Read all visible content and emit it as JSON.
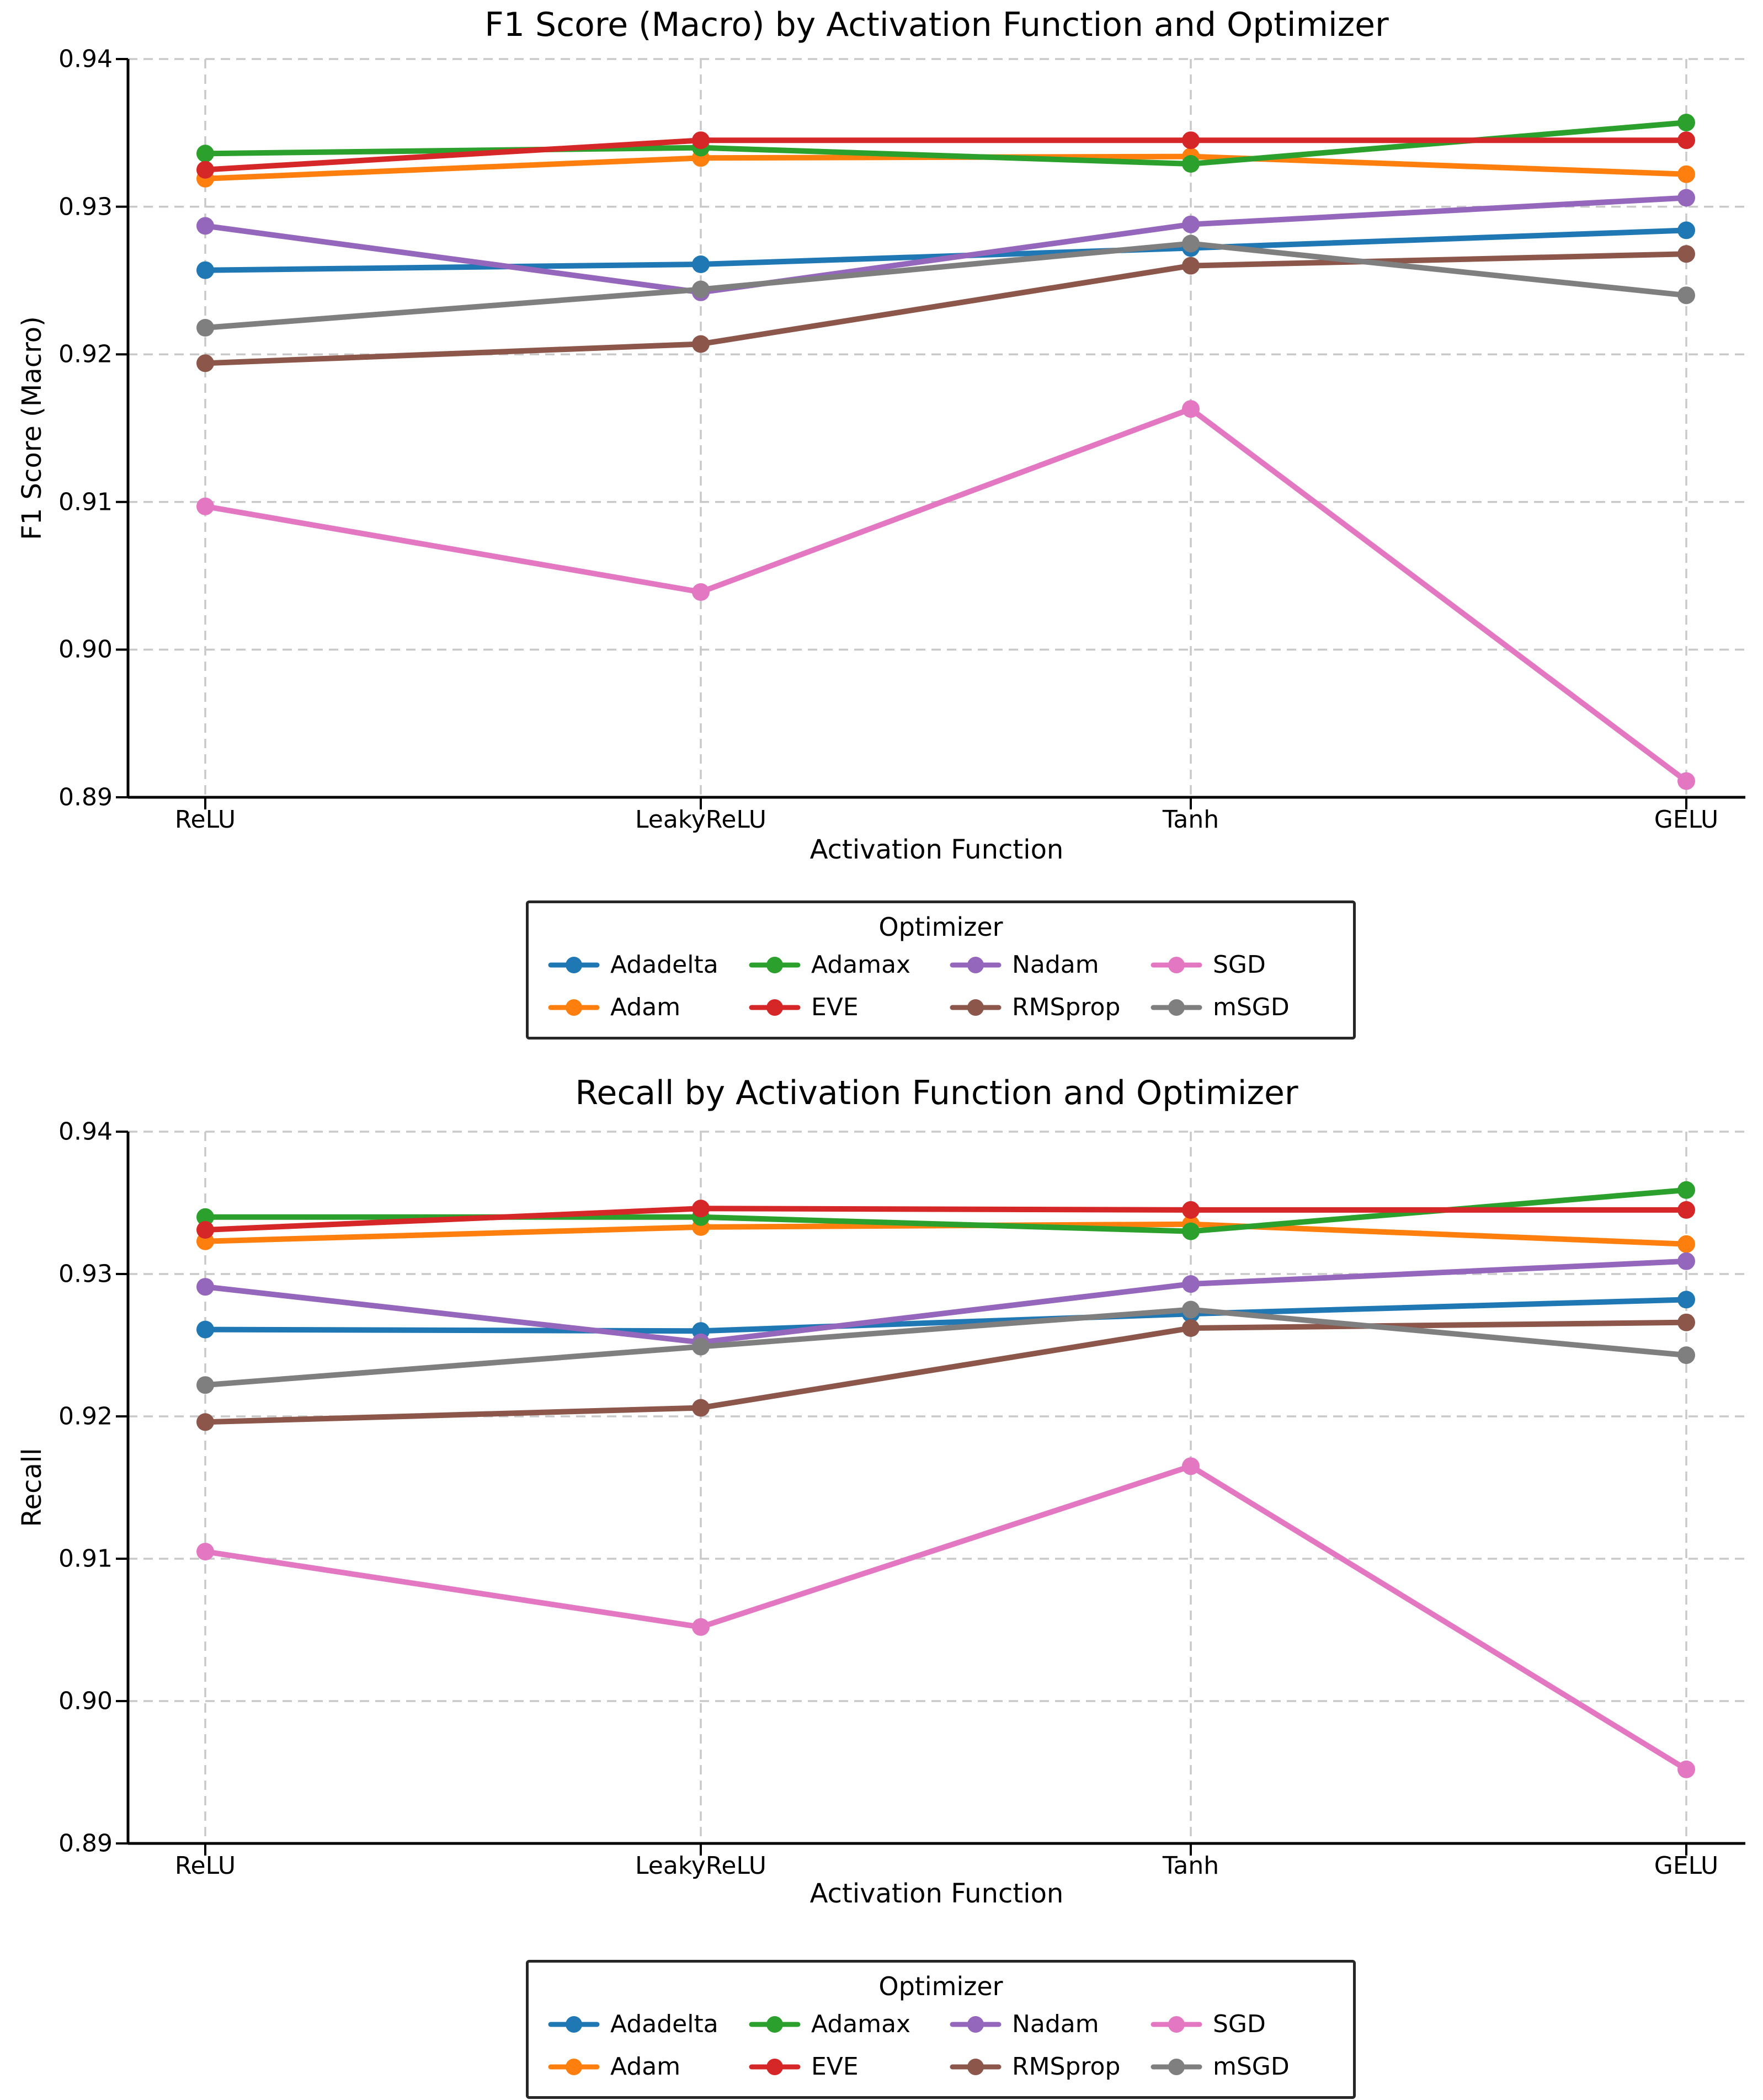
{
  "page": {
    "background": "#ffffff"
  },
  "chart_data": [
    {
      "type": "line",
      "title": "F1 Score (Macro) by Activation Function and Optimizer",
      "xlabel": "Activation Function",
      "ylabel": "F1 Score (Macro)",
      "categories": [
        "ReLU",
        "LeakyReLU",
        "Tanh",
        "GELU"
      ],
      "ylim": [
        0.89,
        0.94
      ],
      "yticks": [
        0.94,
        0.93,
        0.92,
        0.91,
        0.9,
        0.89
      ],
      "grid": true,
      "grid_style": "dashed",
      "legend": {
        "title": "Optimizer",
        "position": "below-center",
        "columns": 4,
        "rows": 2
      },
      "series": [
        {
          "name": "Adadelta",
          "color": "#1f77b4",
          "values": [
            0.9257,
            0.9261,
            0.9272,
            0.9284
          ]
        },
        {
          "name": "Adam",
          "color": "#ff7f0e",
          "values": [
            0.9319,
            0.9333,
            0.9334,
            0.9322
          ]
        },
        {
          "name": "Adamax",
          "color": "#2ca02c",
          "values": [
            0.9336,
            0.934,
            0.9329,
            0.9357
          ]
        },
        {
          "name": "EVE",
          "color": "#d62728",
          "values": [
            0.9325,
            0.9345,
            0.9345,
            0.9345
          ]
        },
        {
          "name": "Nadam",
          "color": "#9467bd",
          "values": [
            0.9287,
            0.9242,
            0.9288,
            0.9306
          ]
        },
        {
          "name": "RMSprop",
          "color": "#8c564b",
          "values": [
            0.9194,
            0.9207,
            0.926,
            0.9268
          ]
        },
        {
          "name": "SGD",
          "color": "#e377c2",
          "values": [
            0.9097,
            0.9039,
            0.9163,
            0.8911
          ]
        },
        {
          "name": "mSGD",
          "color": "#7f7f7f",
          "values": [
            0.9218,
            0.9244,
            0.9275,
            0.924
          ]
        }
      ]
    },
    {
      "type": "line",
      "title": "Recall by Activation Function and Optimizer",
      "xlabel": "Activation Function",
      "ylabel": "Recall",
      "categories": [
        "ReLU",
        "LeakyReLU",
        "Tanh",
        "GELU"
      ],
      "ylim": [
        0.89,
        0.94
      ],
      "yticks": [
        0.94,
        0.93,
        0.92,
        0.91,
        0.9,
        0.89
      ],
      "grid": true,
      "grid_style": "dashed",
      "legend": {
        "title": "Optimizer",
        "position": "below-center",
        "columns": 4,
        "rows": 2
      },
      "series": [
        {
          "name": "Adadelta",
          "color": "#1f77b4",
          "values": [
            0.9261,
            0.926,
            0.9272,
            0.9282
          ]
        },
        {
          "name": "Adam",
          "color": "#ff7f0e",
          "values": [
            0.9323,
            0.9333,
            0.9335,
            0.9321
          ]
        },
        {
          "name": "Adamax",
          "color": "#2ca02c",
          "values": [
            0.934,
            0.934,
            0.933,
            0.9359
          ]
        },
        {
          "name": "EVE",
          "color": "#d62728",
          "values": [
            0.9331,
            0.9346,
            0.9345,
            0.9345
          ]
        },
        {
          "name": "Nadam",
          "color": "#9467bd",
          "values": [
            0.9291,
            0.9252,
            0.9293,
            0.9309
          ]
        },
        {
          "name": "RMSprop",
          "color": "#8c564b",
          "values": [
            0.9196,
            0.9206,
            0.9262,
            0.9266
          ]
        },
        {
          "name": "SGD",
          "color": "#e377c2",
          "values": [
            0.9105,
            0.9052,
            0.9165,
            0.8952
          ]
        },
        {
          "name": "mSGD",
          "color": "#7f7f7f",
          "values": [
            0.9222,
            0.9249,
            0.9275,
            0.9243
          ]
        }
      ]
    }
  ]
}
